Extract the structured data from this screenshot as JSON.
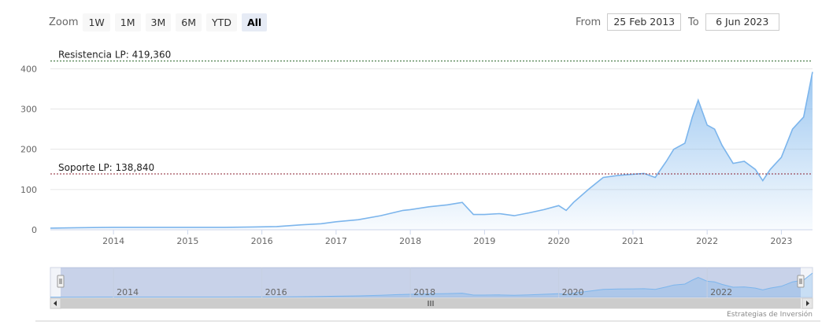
{
  "toolbar": {
    "zoom_label": "Zoom",
    "buttons": [
      "1W",
      "1M",
      "3M",
      "6M",
      "YTD",
      "All"
    ],
    "active": "All"
  },
  "date_range": {
    "from_label": "From",
    "from_value": "25 Feb 2013",
    "to_label": "To",
    "to_value": "6 Jun 2023"
  },
  "credit": "Estrategias de Inversión",
  "colors": {
    "series": "#7cb5ec",
    "resistance": "#2e6b2e",
    "support": "#8b2232",
    "grid": "#e6e6e6",
    "navigator_mask": "rgba(102,133,194,0.3)"
  },
  "chart_data": {
    "type": "area",
    "title": "",
    "xlabel": "",
    "ylabel": "",
    "ylim": [
      0,
      430
    ],
    "y_ticks": [
      "0",
      "100",
      "200",
      "300",
      "400"
    ],
    "x_ticks": [
      "2014",
      "2015",
      "2016",
      "2017",
      "2018",
      "2019",
      "2020",
      "2021",
      "2022",
      "2023"
    ],
    "navigator_ticks": [
      "2014",
      "2016",
      "2018",
      "2020",
      "2022"
    ],
    "plot_lines": [
      {
        "label": "Resistencia LP: 419,360",
        "value": 419.36
      },
      {
        "label": "Soporte LP: 138,840",
        "value": 138.84
      }
    ],
    "series": [
      {
        "x": [
          2013.15,
          2013.5,
          2014.0,
          2014.5,
          2015.0,
          2015.5,
          2015.9,
          2016.2,
          2016.5,
          2016.8,
          2017.0,
          2017.3,
          2017.6,
          2017.9,
          2018.0,
          2018.25,
          2018.5,
          2018.7,
          2018.85,
          2019.0,
          2019.2,
          2019.4,
          2019.6,
          2019.8,
          2020.0,
          2020.1,
          2020.2,
          2020.4,
          2020.6,
          2020.8,
          2021.0,
          2021.15,
          2021.3,
          2021.45,
          2021.55,
          2021.7,
          2021.8,
          2021.88,
          2022.0,
          2022.1,
          2022.2,
          2022.35,
          2022.5,
          2022.65,
          2022.75,
          2022.85,
          2023.0,
          2023.15,
          2023.3,
          2023.42
        ],
        "values": [
          4,
          5,
          6,
          6,
          6,
          6,
          7,
          8,
          12,
          15,
          20,
          25,
          35,
          48,
          50,
          57,
          62,
          68,
          38,
          38,
          40,
          35,
          42,
          50,
          60,
          48,
          68,
          100,
          130,
          135,
          138,
          140,
          130,
          170,
          200,
          215,
          280,
          322,
          260,
          250,
          210,
          165,
          170,
          150,
          122,
          150,
          180,
          250,
          280,
          392
        ]
      }
    ]
  }
}
